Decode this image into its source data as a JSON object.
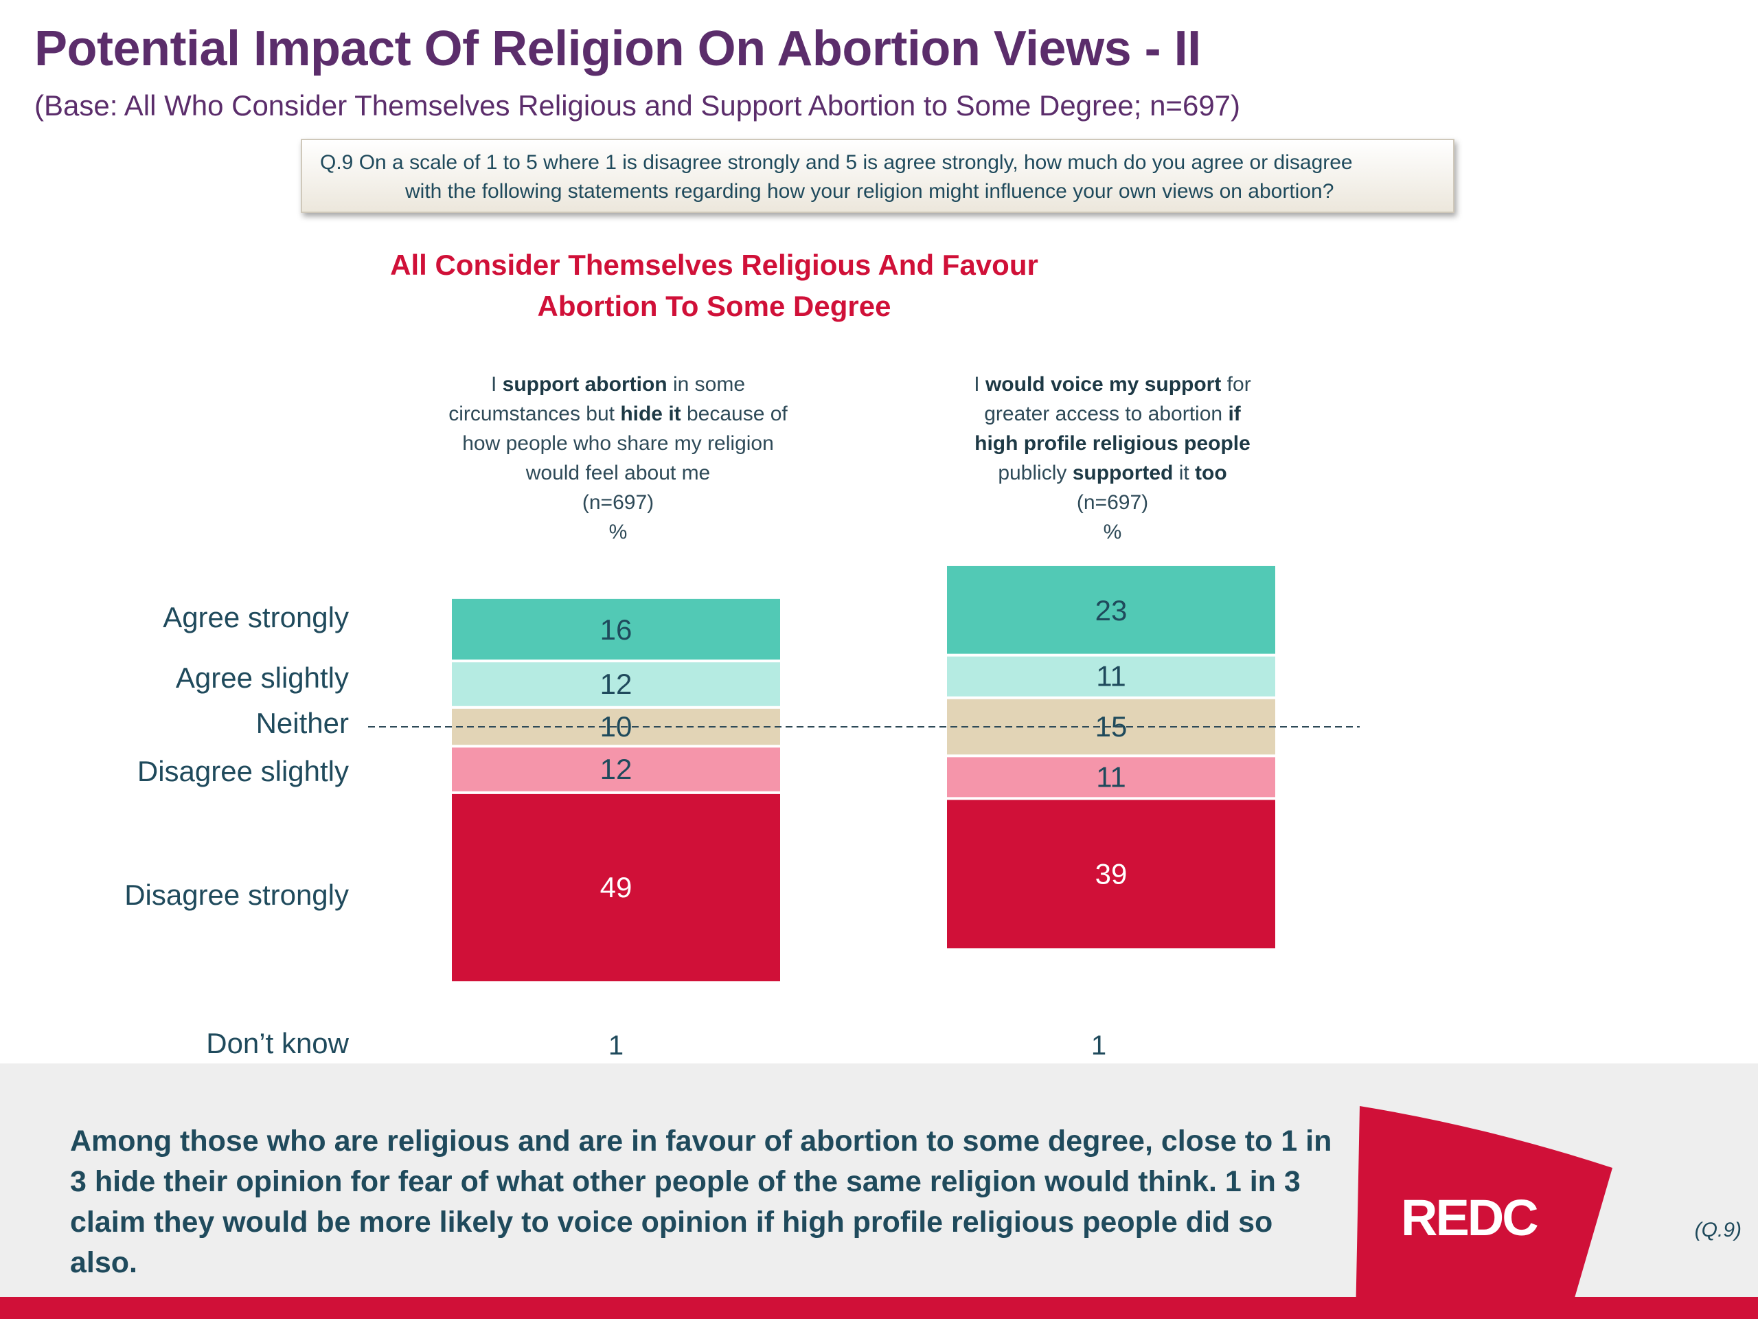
{
  "title": "Potential Impact Of Religion On Abortion Views - II",
  "subtitle": "(Base: All Who Consider Themselves Religious and Support Abortion to Some Degree; n=697)",
  "question": {
    "line1": "Q.9  On a scale of 1 to 5 where 1 is disagree strongly and 5 is agree strongly, how much do you agree or disagree",
    "line2": "with the following statements regarding how your religion might influence your own views on abortion?"
  },
  "chart_data": {
    "type": "bar",
    "stacked": true,
    "title_lines": [
      "All Consider Themselves Religious And Favour",
      "Abortion To Some Degree"
    ],
    "categories": [
      {
        "header_lines": [
          [
            {
              "t": "I ",
              "b": false
            },
            {
              "t": "support abortion",
              "b": true
            },
            {
              "t": " in some",
              "b": false
            }
          ],
          [
            {
              "t": "circumstances but ",
              "b": false
            },
            {
              "t": "hide it",
              "b": true
            },
            {
              "t": " because of",
              "b": false
            }
          ],
          [
            {
              "t": "how people who share my religion",
              "b": false
            }
          ],
          [
            {
              "t": "would feel about me",
              "b": false
            }
          ]
        ],
        "n": "(n=697)",
        "unit": "%",
        "dont_know": "1"
      },
      {
        "header_lines": [
          [
            {
              "t": "I ",
              "b": false
            },
            {
              "t": "would voice my support",
              "b": true
            },
            {
              "t": " for",
              "b": false
            }
          ],
          [
            {
              "t": "greater access to abortion ",
              "b": false
            },
            {
              "t": "if",
              "b": true
            }
          ],
          [
            {
              "t": "high profile religious people",
              "b": true
            }
          ],
          [
            {
              "t": "publicly ",
              "b": false
            },
            {
              "t": "supported",
              "b": true
            },
            {
              "t": " it ",
              "b": false
            },
            {
              "t": "too",
              "b": true
            }
          ]
        ],
        "n": "(n=697)",
        "unit": "%",
        "dont_know": "1"
      }
    ],
    "series": [
      {
        "name": "Agree strongly",
        "color": "#52c9b5",
        "values": [
          16,
          23
        ]
      },
      {
        "name": "Agree slightly",
        "color": "#b5ebe2",
        "values": [
          12,
          11
        ]
      },
      {
        "name": "Neither",
        "color": "#e2d4b6",
        "values": [
          10,
          15
        ]
      },
      {
        "name": "Disagree slightly",
        "color": "#f595aa",
        "values": [
          12,
          11
        ]
      },
      {
        "name": "Disagree strongly",
        "color": "#d01038",
        "values": [
          49,
          39
        ]
      }
    ],
    "dont_know_label": "Don’t know",
    "legend": "left"
  },
  "footer": {
    "text": "Among those who are religious and are in favour of abortion to some degree, close to 1 in 3 hide their opinion for fear of what other people of the same religion would think. 1 in 3 claim they would be more likely to voice opinion if high profile religious people did so also.",
    "logo": "REDC",
    "source_ref": "(Q.9)"
  }
}
